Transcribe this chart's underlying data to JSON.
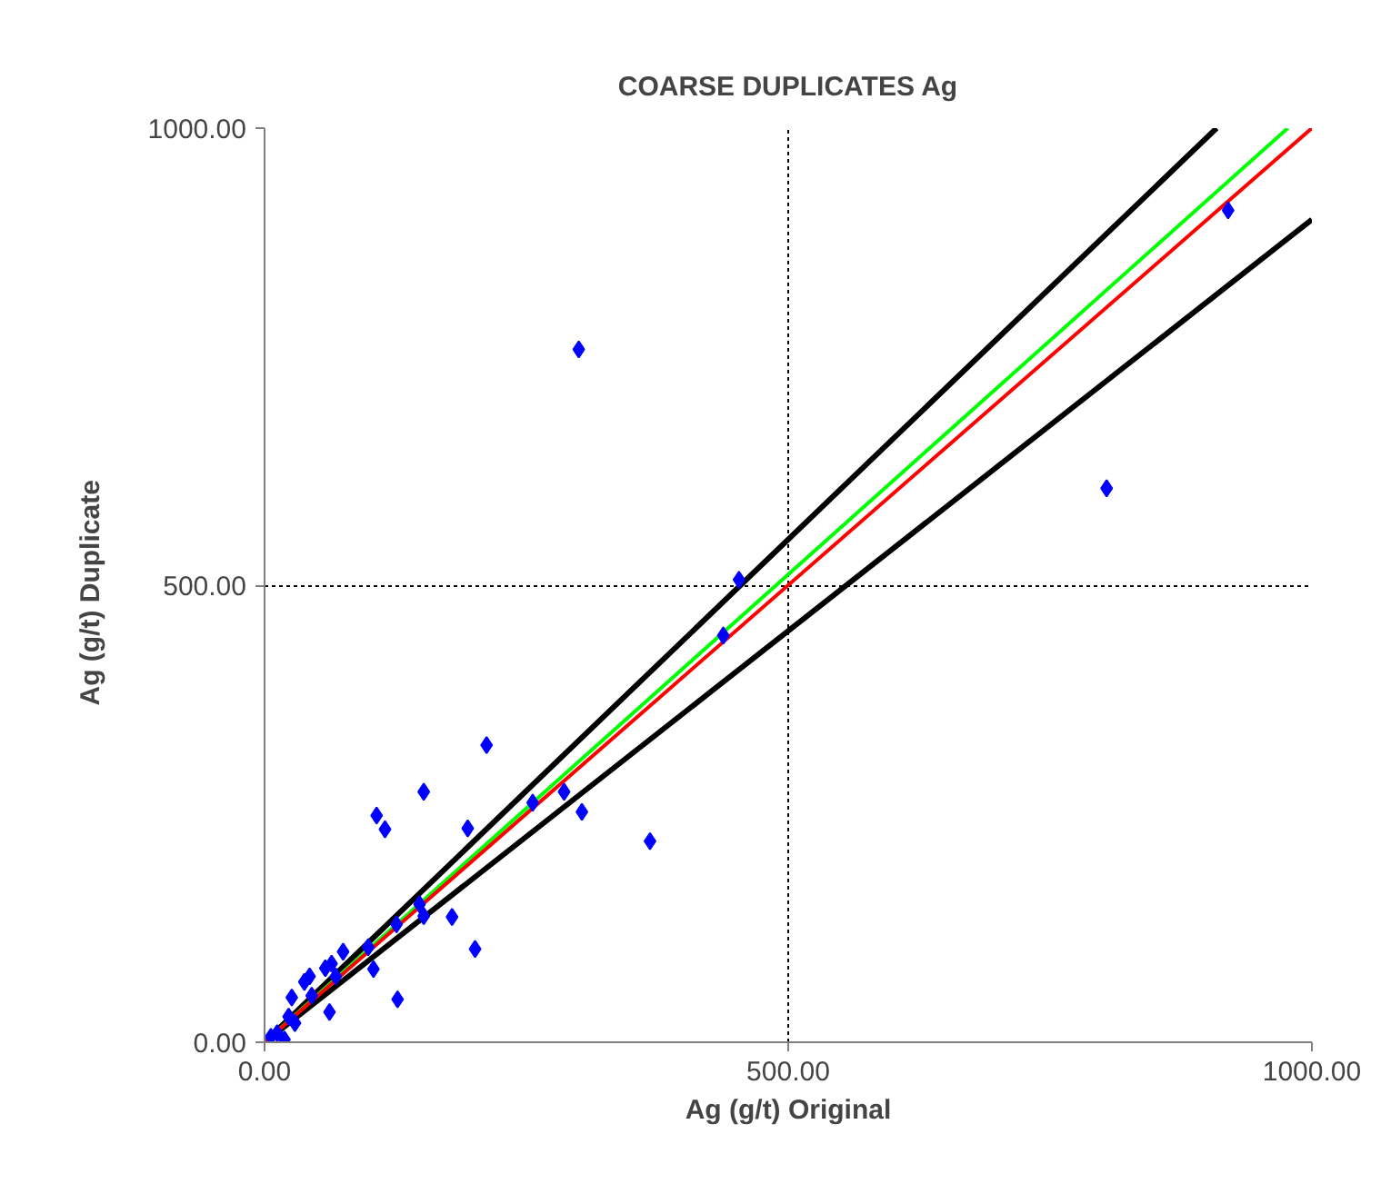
{
  "chart_data": {
    "type": "scatter",
    "title": "COARSE DUPLICATES Ag",
    "xlabel": "Ag (g/t) Original",
    "ylabel": "Ag  (g/t)  Duplicate",
    "xlim": [
      0,
      1000
    ],
    "ylim": [
      0,
      1000
    ],
    "xticks": [
      {
        "value": 0,
        "label": "0.00"
      },
      {
        "value": 500,
        "label": "500.00"
      },
      {
        "value": 1000,
        "label": "1000.00"
      }
    ],
    "yticks": [
      {
        "value": 0,
        "label": "0.00"
      },
      {
        "value": 500,
        "label": "500.00"
      },
      {
        "value": 1000,
        "label": "1000.00"
      }
    ],
    "grid": true,
    "series": [
      {
        "type": "line",
        "marker": "none",
        "color": "#000000",
        "x": [
          0,
          909
        ],
        "values": [
          0,
          1000
        ]
      },
      {
        "type": "line",
        "marker": "none",
        "color": "#000000",
        "x": [
          0,
          1000
        ],
        "values": [
          0,
          900
        ]
      },
      {
        "type": "line",
        "marker": "none",
        "color": "#00ff00",
        "x": [
          0,
          977
        ],
        "values": [
          0,
          1000
        ]
      },
      {
        "type": "line",
        "marker": "none",
        "color": "#ff0000",
        "x": [
          0,
          1000
        ],
        "values": [
          0,
          1000
        ]
      },
      {
        "marker": "diamond",
        "color": "#0000ff",
        "x": [
          920,
          804,
          300,
          453,
          438,
          212,
          152,
          107,
          115,
          194,
          256,
          286,
          303,
          368,
          179,
          201,
          148,
          152,
          126,
          99,
          104,
          127,
          75,
          64,
          58,
          38,
          43,
          45,
          26,
          62,
          68,
          29,
          23,
          19,
          6,
          12
        ],
        "values": [
          910,
          606,
          758,
          506,
          445,
          325,
          274,
          248,
          233,
          234,
          262,
          274,
          252,
          220,
          137,
          102,
          151,
          138,
          129,
          104,
          80,
          47,
          99,
          86,
          81,
          66,
          72,
          51,
          49,
          33,
          72,
          21,
          28,
          3,
          6,
          10
        ]
      }
    ]
  }
}
